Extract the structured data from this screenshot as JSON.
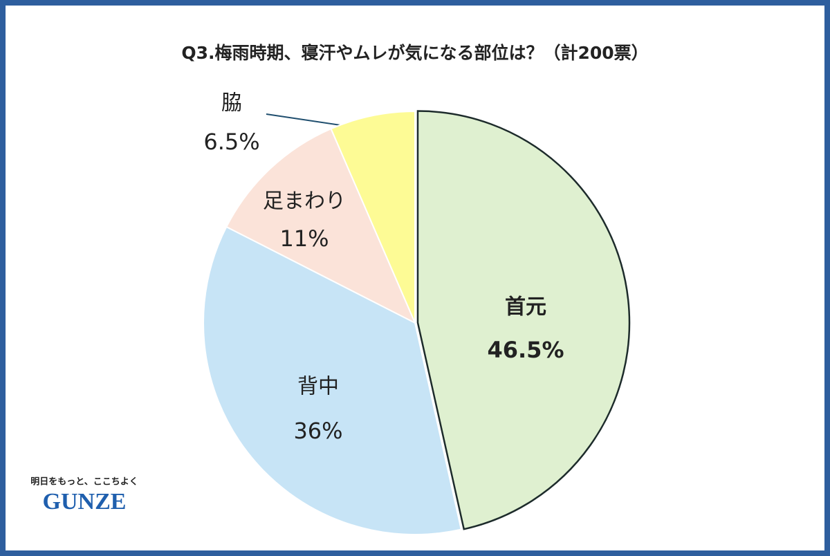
{
  "chart_data": {
    "type": "pie",
    "title": "Q3.梅雨時期、寝汗やムレが気になる部位は？（計200票）",
    "categories": [
      "首元",
      "背中",
      "足まわり",
      "脇"
    ],
    "values": [
      46.5,
      36,
      11,
      6.5
    ],
    "value_labels": [
      "46.5%",
      "36%",
      "11%",
      "6.5%"
    ],
    "colors": [
      "#dff0d0",
      "#c7e4f6",
      "#fbe3d9",
      "#fdfb95"
    ]
  },
  "logo": {
    "tagline": "明日をもっと、ここちよく",
    "name": "GUNZE"
  }
}
